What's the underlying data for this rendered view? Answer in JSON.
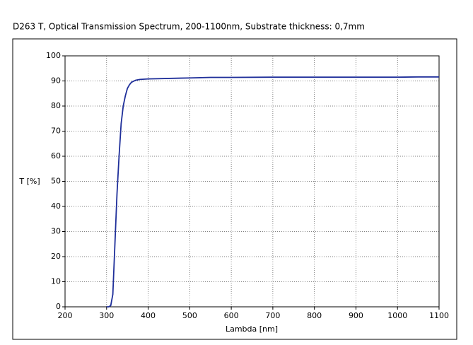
{
  "chart_data": {
    "type": "line",
    "title": "D263 T, Optical Transmission Spectrum, 200-1100nm, Substrate thickness: 0,7mm",
    "x_label": "Lambda [nm]",
    "y_label": "T [%]",
    "x": [
      300,
      305,
      310,
      315,
      320,
      325,
      330,
      335,
      340,
      345,
      350,
      355,
      360,
      370,
      380,
      400,
      450,
      500,
      550,
      600,
      700,
      800,
      900,
      1000,
      1050,
      1100
    ],
    "series": [
      {
        "color": "#1f2f9a",
        "values": [
          0,
          0,
          0.5,
          5,
          25,
          45,
          60,
          73,
          80,
          84,
          87,
          88.5,
          89.5,
          90.3,
          90.6,
          90.8,
          91,
          91.2,
          91.4,
          91.4,
          91.5,
          91.5,
          91.5,
          91.5,
          91.6,
          91.6
        ]
      }
    ],
    "xlim": [
      200,
      1100
    ],
    "xticks": [
      200,
      300,
      400,
      500,
      600,
      700,
      800,
      900,
      1000,
      1100
    ],
    "ylim": [
      0,
      100
    ],
    "yticks": [
      0,
      10,
      20,
      30,
      40,
      50,
      60,
      70,
      80,
      90,
      100
    ],
    "grid": true
  }
}
